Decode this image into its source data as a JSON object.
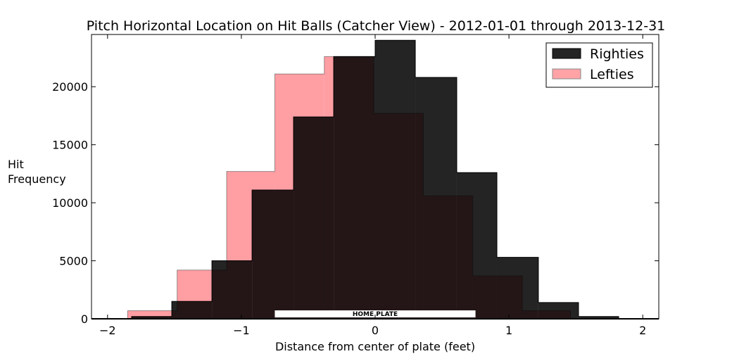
{
  "chart_data": {
    "type": "histogram",
    "title": "Pitch Horizontal Location on Hit Balls (Catcher View) - 2012-01-01 through 2013-12-31",
    "xlabel": "Distance from center of plate (feet)",
    "ylabel": [
      "Hit",
      "Frequency"
    ],
    "xlim": [
      -2.12,
      2.12
    ],
    "ylim": [
      0,
      24500
    ],
    "xticks": [
      -2,
      -1,
      0,
      1,
      2
    ],
    "xtick_labels": [
      "−2",
      "−1",
      "0",
      "1",
      "2"
    ],
    "yticks": [
      0,
      5000,
      10000,
      15000,
      20000
    ],
    "ytick_labels": [
      "0",
      "5000",
      "10000",
      "15000",
      "20000"
    ],
    "legend_position": "top-right",
    "series": [
      {
        "name": "Lefties",
        "color": "#ff9499",
        "edges": [
          -1.85,
          -1.48,
          -1.11,
          -0.75,
          -0.38,
          -0.01,
          0.36,
          0.73,
          1.1,
          1.46
        ],
        "values": [
          700,
          4200,
          12700,
          21100,
          22600,
          17700,
          10600,
          3700,
          700
        ]
      },
      {
        "name": "Righties",
        "color": "#000000",
        "edges": [
          -1.82,
          -1.52,
          -1.22,
          -0.92,
          -0.61,
          -0.31,
          0.0,
          0.3,
          0.61,
          0.91,
          1.22,
          1.52,
          1.82
        ],
        "values": [
          200,
          1500,
          5000,
          11100,
          17400,
          22600,
          24000,
          20800,
          12600,
          5300,
          1400,
          200
        ]
      }
    ],
    "annotation": {
      "text": "HOME PLATE",
      "x_range": [
        -0.75,
        0.75
      ]
    }
  }
}
